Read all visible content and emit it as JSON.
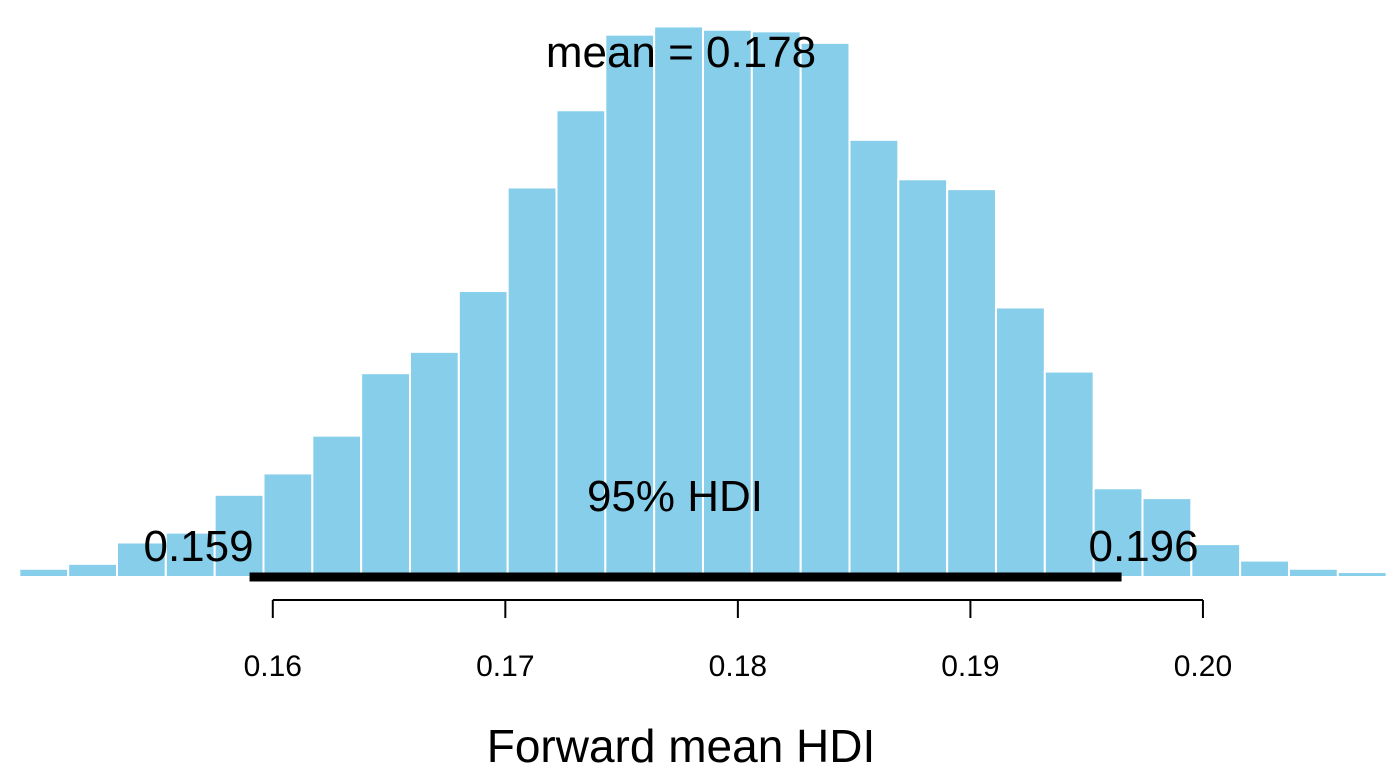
{
  "chart_data": {
    "type": "bar",
    "subtype": "histogram",
    "xlabel": "Forward mean HDI",
    "ylabel": "",
    "bin_width": 0.0021,
    "bin_start": 0.1491,
    "values": [
      5,
      8,
      21,
      27,
      50,
      63,
      86,
      124,
      137,
      174,
      237,
      284,
      330,
      335,
      333,
      332,
      325,
      266,
      242,
      236,
      164,
      125,
      54,
      48,
      20,
      10,
      5,
      3
    ],
    "xlim": [
      0.149,
      0.2077
    ],
    "ylim": [
      0,
      345
    ],
    "xticks": [
      "0.16",
      "0.17",
      "0.18",
      "0.19",
      "0.20"
    ],
    "bar_color": "#87ceeb",
    "grid": false,
    "annotations": {
      "mean_label": "mean = 0.178",
      "mean_value": 0.178,
      "hdi_label": "95% HDI",
      "hdi_lower": 0.159,
      "hdi_upper": 0.1965,
      "hdi_lower_label": "0.159",
      "hdi_upper_label": "0.196"
    }
  }
}
